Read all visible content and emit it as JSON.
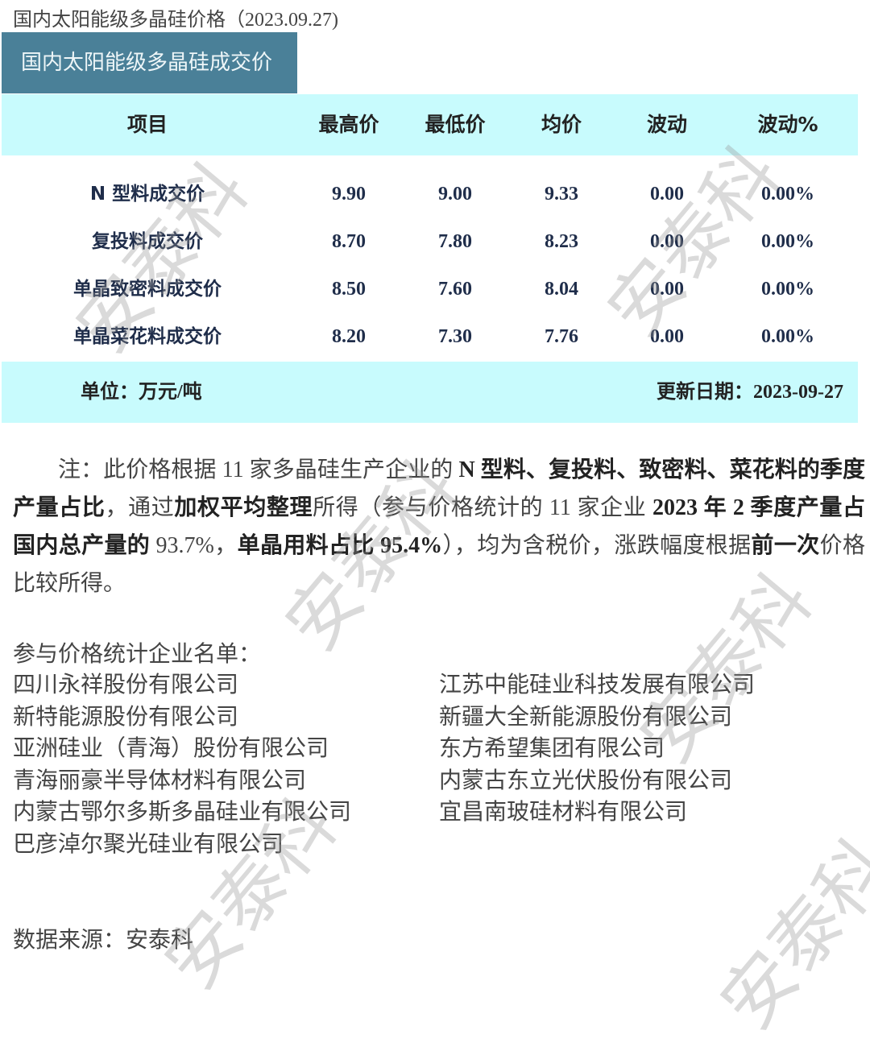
{
  "title": "国内太阳能级多晶硅价格（2023.09.27)",
  "banner": "国内太阳能级多晶硅成交价",
  "table": {
    "headers": [
      "项目",
      "最高价",
      "最低价",
      "均价",
      "波动",
      "波动%"
    ],
    "rows": [
      [
        "N 型料成交价",
        "9.90",
        "9.00",
        "9.33",
        "0.00",
        "0.00%"
      ],
      [
        "复投料成交价",
        "8.70",
        "7.80",
        "8.23",
        "0.00",
        "0.00%"
      ],
      [
        "单晶致密料成交价",
        "8.50",
        "7.60",
        "8.04",
        "0.00",
        "0.00%"
      ],
      [
        "单晶菜花料成交价",
        "8.20",
        "7.30",
        "7.76",
        "0.00",
        "0.00%"
      ]
    ],
    "unit": "单位：万元/吨",
    "update": "更新日期：2023-09-27",
    "header_color": "#c8fbfd",
    "banner_color": "#4a8098"
  },
  "note": [
    {
      "t": "注：此价格根据 11 家多晶硅生产企业的 ",
      "b": false
    },
    {
      "t": "N 型料、复投料、致密料、菜花料的季度产量占比",
      "b": true
    },
    {
      "t": "，通过",
      "b": false
    },
    {
      "t": "加权平均整理",
      "b": true
    },
    {
      "t": "所得（参与价格统计的 11 家企业 ",
      "b": false
    },
    {
      "t": "2023 年 2 季度产量占国内总产量的",
      "b": true
    },
    {
      "t": " 93.7%，",
      "b": false
    },
    {
      "t": "单晶用料占比 95.4%",
      "b": true
    },
    {
      "t": "），均为含税价，涨跌幅度根据",
      "b": false
    },
    {
      "t": "前一次",
      "b": true
    },
    {
      "t": "价格比较所得。",
      "b": false
    }
  ],
  "companies_label": "参与价格统计企业名单：",
  "companies_left": [
    "四川永祥股份有限公司",
    "新特能源股份有限公司",
    "亚洲硅业（青海）股份有限公司",
    "青海丽豪半导体材料有限公司",
    "内蒙古鄂尔多斯多晶硅业有限公司",
    "巴彦淖尔聚光硅业有限公司"
  ],
  "companies_right": [
    "江苏中能硅业科技发展有限公司",
    "新疆大全新能源股份有限公司",
    "东方希望集团有限公司",
    "内蒙古东立光伏股份有限公司",
    "宜昌南玻硅材料有限公司"
  ],
  "source": "数据来源：安泰科",
  "watermark": "安泰科"
}
